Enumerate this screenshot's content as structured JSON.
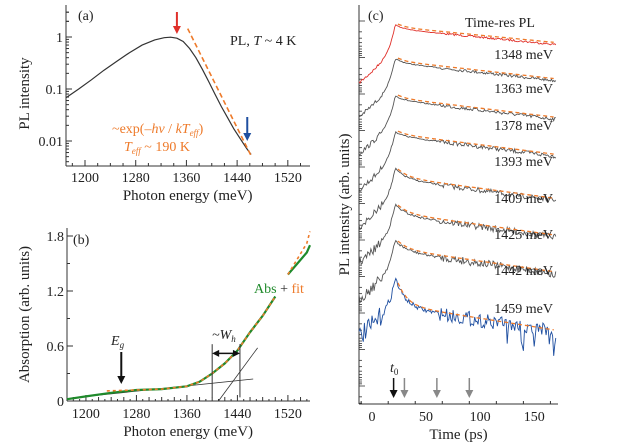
{
  "chart_data": [
    {
      "panel": "a",
      "type": "line",
      "panel_label": "(a)",
      "xlabel": "Photon energy (meV)",
      "ylabel": "PL intensity",
      "xscale": "linear",
      "yscale": "log",
      "xlim": [
        1170,
        1555
      ],
      "ylim": [
        0.004,
        3.5
      ],
      "xticks": [
        1200,
        1280,
        1360,
        1440,
        1520
      ],
      "yticks": [
        1,
        0.1,
        0.01
      ],
      "ytick_labels": [
        "1",
        "0.1",
        "0.01"
      ],
      "annotations": {
        "condition_prefix": "PL, ",
        "condition_var": "T",
        "condition_suffix": " ~ 4 K",
        "fit_line1": "~exp(–hv / kT",
        "fit_line1_sub": "eff",
        "fit_line1_end": ")",
        "fit_line2_var": "T",
        "fit_line2_sub": "eff",
        "fit_line2_end": " ~ 190 K"
      },
      "series": [
        {
          "name": "PL spectrum",
          "color": "#333333",
          "style": "solid",
          "x": [
            1170,
            1190,
            1210,
            1230,
            1250,
            1270,
            1290,
            1310,
            1325,
            1335,
            1345,
            1355,
            1365,
            1375,
            1385,
            1395,
            1405,
            1415,
            1425,
            1435,
            1445,
            1455,
            1462
          ],
          "y": [
            0.068,
            0.1,
            0.15,
            0.23,
            0.34,
            0.5,
            0.7,
            0.88,
            0.97,
            0.99,
            0.95,
            0.82,
            0.6,
            0.4,
            0.24,
            0.14,
            0.08,
            0.046,
            0.028,
            0.017,
            0.011,
            0.0072,
            0.0055
          ]
        },
        {
          "name": "exp fit",
          "color": "#ee7a2a",
          "style": "dashed",
          "x": [
            1362,
            1462
          ],
          "y": [
            1.45,
            0.0052
          ]
        }
      ],
      "markers": [
        {
          "name": "red-arrow",
          "x": 1345,
          "color": "#e0302a"
        },
        {
          "name": "blue-arrow",
          "x": 1456,
          "color": "#1f4fa0"
        }
      ]
    },
    {
      "panel": "b",
      "type": "line",
      "panel_label": "(b)",
      "xlabel": "Photon energy (meV)",
      "ylabel": "Absorption (arb. units)",
      "xlim": [
        1170,
        1555
      ],
      "ylim": [
        0,
        1.85
      ],
      "xticks": [
        1200,
        1280,
        1360,
        1440,
        1520
      ],
      "yticks": [
        0,
        0.6,
        1.2,
        1.8
      ],
      "ytick_labels": [
        "0",
        "0.6",
        "1.2",
        "1.8"
      ],
      "annotations": {
        "eg_main": "E",
        "eg_sub": "g",
        "wh_prefix": "~W",
        "wh_sub": "h",
        "legend_abs": "Abs",
        "legend_plus": " + ",
        "legend_fit": "fit"
      },
      "series": [
        {
          "name": "Abs",
          "color": "#1f8a2b",
          "x": [
            1170,
            1200,
            1240,
            1280,
            1320,
            1360,
            1380,
            1400,
            1420,
            1440,
            1460,
            1480,
            1500
          ],
          "y": [
            0.02,
            0.05,
            0.09,
            0.12,
            0.13,
            0.16,
            0.21,
            0.3,
            0.41,
            0.55,
            0.75,
            0.93,
            1.14
          ]
        },
        {
          "name": "Abs (high)",
          "color": "#1f8a2b",
          "x": [
            1520,
            1535,
            1550,
            1555
          ],
          "y": [
            1.38,
            1.5,
            1.62,
            1.7
          ]
        },
        {
          "name": "fit",
          "color": "#ee7a2a",
          "x": [
            1233,
            1280,
            1320,
            1360,
            1380,
            1400,
            1420,
            1440,
            1460,
            1480,
            1500
          ],
          "y": [
            0.11,
            0.12,
            0.13,
            0.16,
            0.21,
            0.3,
            0.41,
            0.55,
            0.75,
            0.93,
            1.14
          ]
        },
        {
          "name": "fit (high)",
          "color": "#ee7a2a",
          "x": [
            1520,
            1535,
            1550,
            1555
          ],
          "y": [
            1.38,
            1.55,
            1.72,
            1.85
          ]
        }
      ],
      "guides": {
        "baseline": {
          "x": [
            1200,
            1465
          ],
          "y": [
            0.05,
            0.24
          ]
        },
        "edge_line": {
          "x": [
            1410,
            1465
          ],
          "y": [
            0.0,
            0.5
          ]
        },
        "wh_left_x": 1400,
        "wh_right_x": 1444,
        "wh_y": 0.52,
        "eg_x": 1256
      }
    },
    {
      "panel": "c",
      "type": "line",
      "panel_label": "(c)",
      "title": "Time-res PL",
      "xlabel": "Time (ps)",
      "ylabel": "PL intensity (arb. units)",
      "xlim": [
        -12,
        172
      ],
      "xticks": [
        0,
        50,
        100,
        150
      ],
      "energies": [
        "1348 meV",
        "1363 meV",
        "1378 meV",
        "1393 meV",
        "1409 meV",
        "1425 meV",
        "1442 meV",
        "1459 meV"
      ],
      "trace_colors": [
        "#e0302a",
        "#555555",
        "#555555",
        "#555555",
        "#555555",
        "#555555",
        "#555555",
        "#1f4fa0"
      ],
      "fit_color": "#ee7a2a",
      "t0_label": "t",
      "t0_sub": "0",
      "t0_arrow_time": 20,
      "gray_arrow_times": [
        30,
        60,
        90
      ]
    }
  ]
}
